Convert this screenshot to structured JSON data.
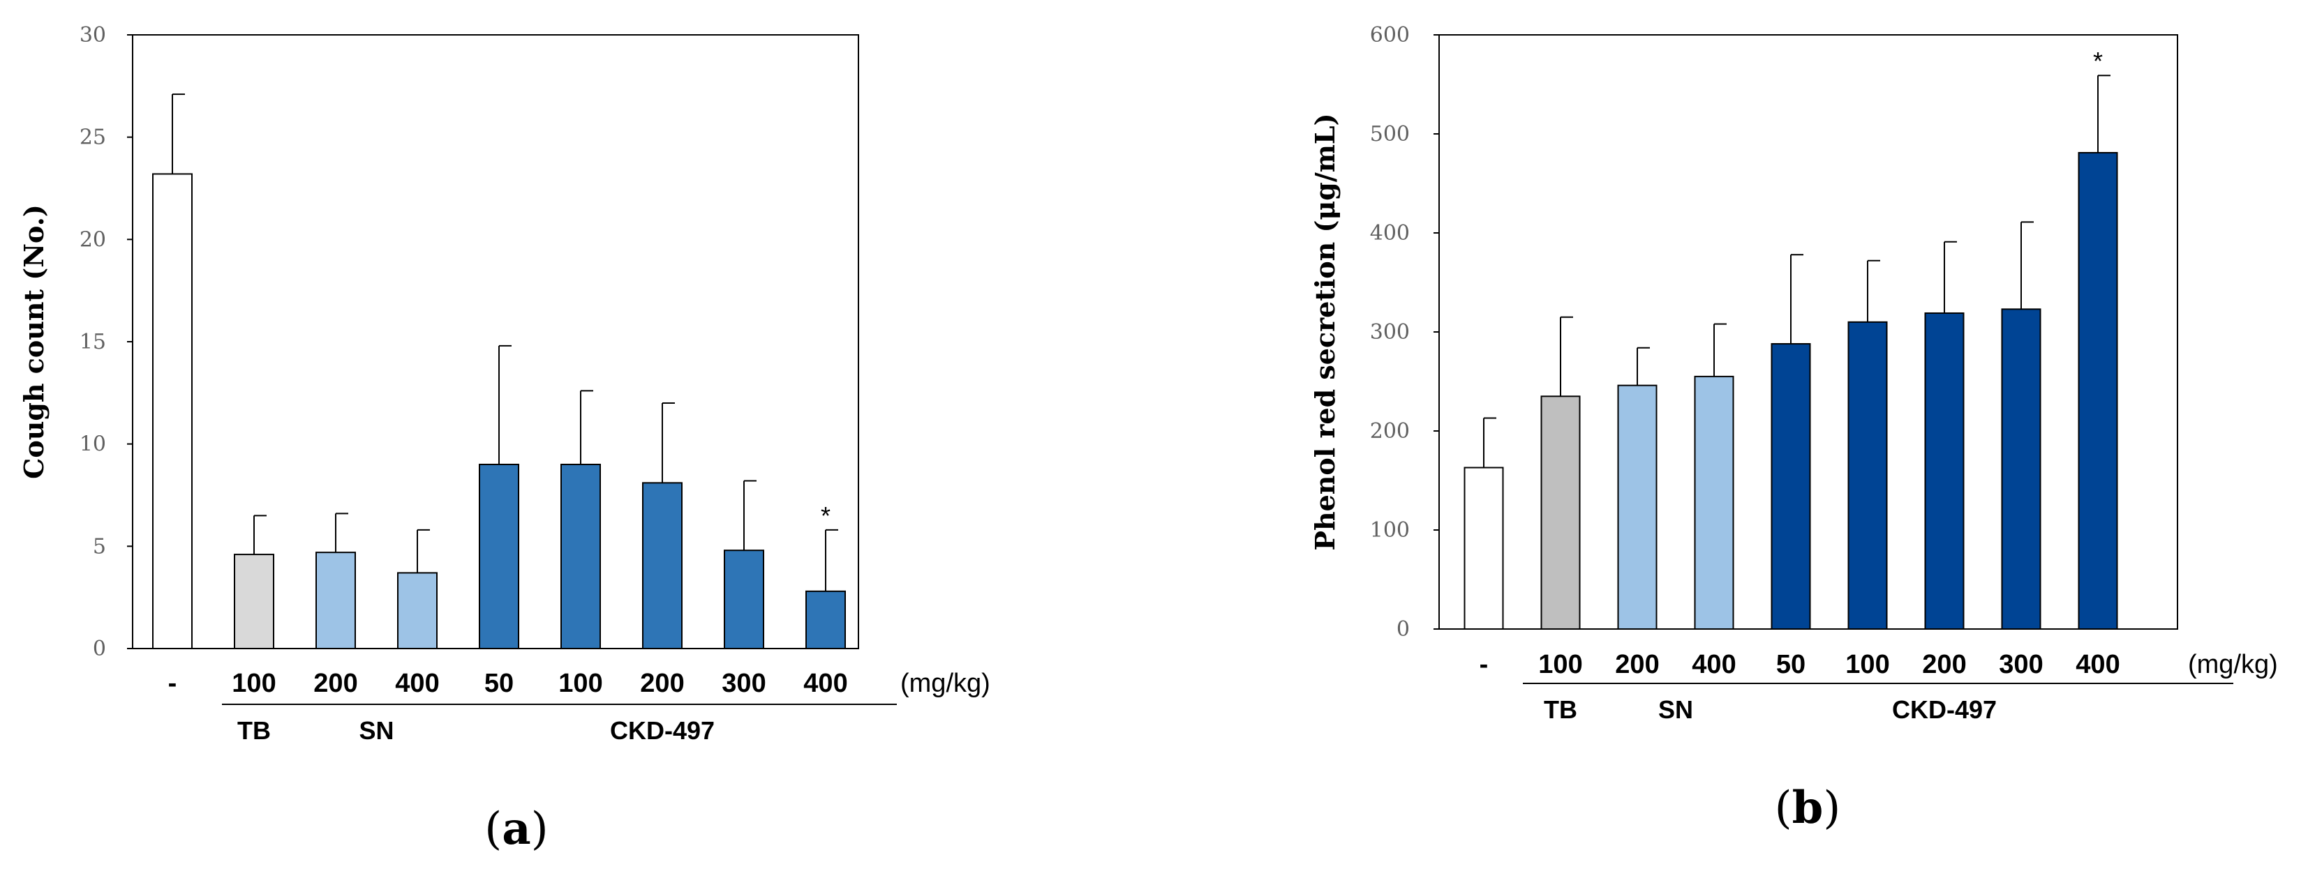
{
  "chart_data": [
    {
      "type": "bar",
      "panel": "a",
      "ylabel": "Cough count (No.)",
      "ylim": [
        0,
        30
      ],
      "yticks": [
        0,
        5,
        10,
        15,
        20,
        25,
        30
      ],
      "categories": [
        "-",
        "100",
        "200",
        "400",
        "50",
        "100",
        "200",
        "300",
        "400"
      ],
      "unit_label": "(mg/kg)",
      "values": [
        23.2,
        4.6,
        4.7,
        3.7,
        9.0,
        9.0,
        8.1,
        4.8,
        2.8
      ],
      "errors": [
        3.9,
        1.9,
        1.9,
        2.1,
        5.8,
        3.6,
        3.9,
        3.4,
        3.0
      ],
      "colors": [
        "#ffffff",
        "#d9d9d9",
        "#9dc3e6",
        "#9dc3e6",
        "#2e75b6",
        "#2e75b6",
        "#2e75b6",
        "#2e75b6",
        "#2e75b6"
      ],
      "significance": [
        "",
        "",
        "",
        "",
        "",
        "",
        "",
        "",
        "*"
      ],
      "groups": [
        {
          "label": "TB",
          "start": 1,
          "end": 1
        },
        {
          "label": "SN",
          "start": 2,
          "end": 3
        },
        {
          "label": "CKD-497",
          "start": 4,
          "end": 8
        }
      ]
    },
    {
      "type": "bar",
      "panel": "b",
      "ylabel": "Phenol red secretion (μg/mL)",
      "ylim": [
        0,
        600
      ],
      "yticks": [
        0,
        100,
        200,
        300,
        400,
        500,
        600
      ],
      "categories": [
        "-",
        "100",
        "200",
        "400",
        "50",
        "100",
        "200",
        "300",
        "400"
      ],
      "unit_label": "(mg/kg)",
      "values": [
        163,
        235,
        246,
        255,
        288,
        310,
        319,
        323,
        481
      ],
      "errors": [
        50,
        80,
        38,
        53,
        90,
        62,
        72,
        88,
        78
      ],
      "colors": [
        "#ffffff",
        "#bfbfbf",
        "#9dc3e6",
        "#9dc3e6",
        "#004494",
        "#004494",
        "#004494",
        "#004494",
        "#004494"
      ],
      "significance": [
        "",
        "",
        "",
        "",
        "",
        "",
        "",
        "",
        "*"
      ],
      "groups": [
        {
          "label": "TB",
          "start": 1,
          "end": 1
        },
        {
          "label": "SN",
          "start": 2,
          "end": 3
        },
        {
          "label": "CKD-497",
          "start": 4,
          "end": 8
        }
      ]
    }
  ],
  "panel_labels": [
    "a",
    "b"
  ]
}
